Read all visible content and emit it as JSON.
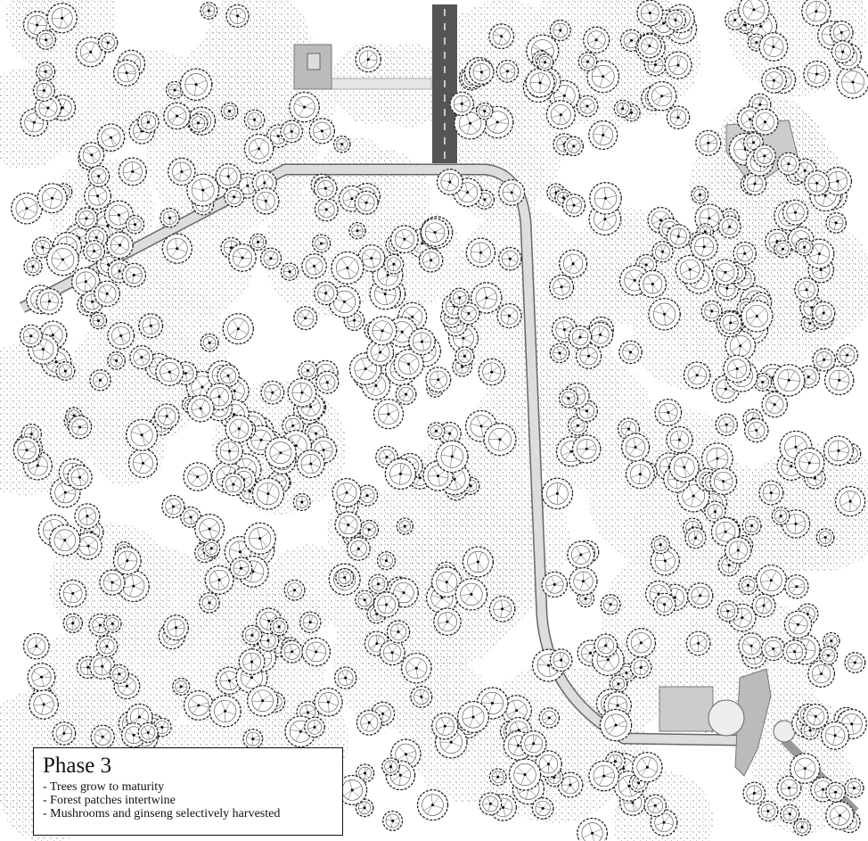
{
  "legend": {
    "title": "Phase 3",
    "items": [
      "- Trees grow to maturity",
      "- Forest patches intertwine",
      "- Mushrooms and ginseng selectively harvested"
    ]
  }
}
